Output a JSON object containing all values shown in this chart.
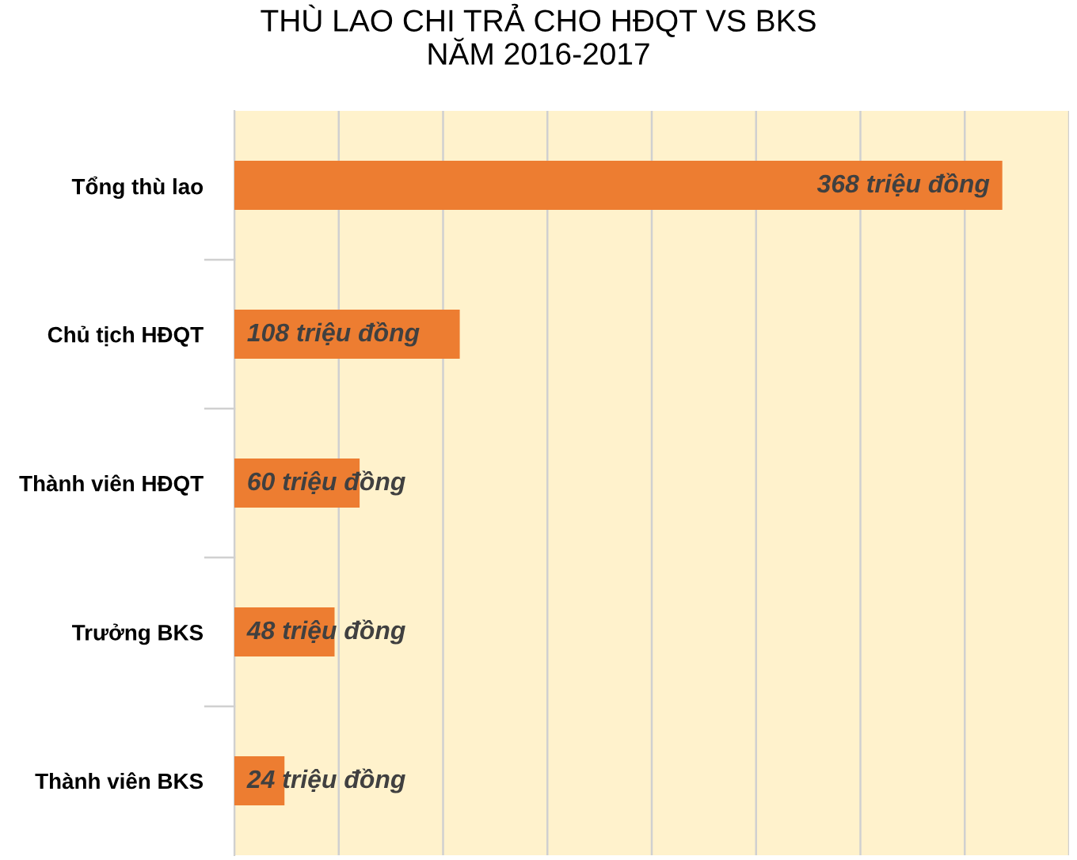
{
  "chart_data": {
    "type": "bar",
    "orientation": "horizontal",
    "title": "THÙ LAO CHI TRẢ CHO HĐQT VS BKS\nNĂM 2016-2017",
    "categories": [
      "Tổng thù lao",
      "Chủ tịch HĐQT",
      "Thành viên HĐQT",
      "Trưởng BKS",
      "Thành viên BKS"
    ],
    "values": [
      368,
      108,
      60,
      48,
      24
    ],
    "value_labels": [
      "368 triệu đồng",
      "108 triệu đồng",
      "60 triệu đồng",
      "48 triệu đồng",
      "24 triệu đồng"
    ],
    "color": "#ed7d31",
    "xlim": [
      0,
      400
    ],
    "xticks": [
      {
        "value": 0,
        "label": null
      },
      {
        "value": 50,
        "label": null
      },
      {
        "value": 100,
        "label": null
      },
      {
        "value": 150,
        "label": null
      },
      {
        "value": 200,
        "label": null
      },
      {
        "value": 250,
        "label": null
      },
      {
        "value": 300,
        "label": null
      },
      {
        "value": 350,
        "label": null
      },
      {
        "value": 400,
        "label": null
      }
    ],
    "grid": "x",
    "tick_labels": "y"
  }
}
